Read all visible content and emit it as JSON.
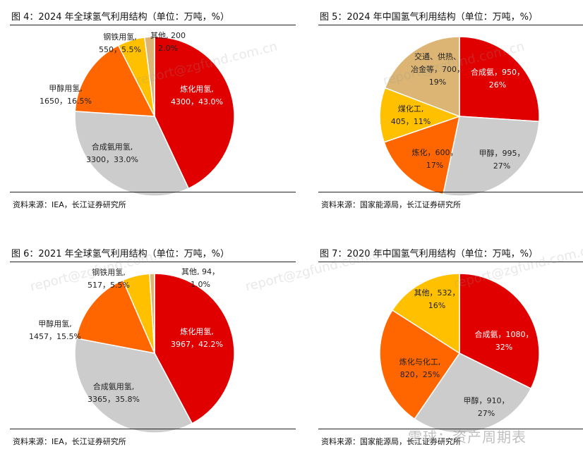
{
  "panels": [
    {
      "title": "图 4：2024 年全球氢气利用结构（单位：万吨，%）",
      "source": "资料来源：IEA，长江证券研究所"
    },
    {
      "title": "图 5：2024 年中国氢气利用结构（单位：万吨，%）",
      "source": "资料来源：国家能源局，长江证券研究所"
    },
    {
      "title": "图 6：2021 年全球氢气利用结构（单位：万吨，%）",
      "source": "资料来源：IEA，长江证券研究所"
    },
    {
      "title": "图 7：2020 年中国氢气利用结构（单位：万吨，%）",
      "source": "资料来源：国家能源局，长江证券研究所"
    }
  ],
  "watermark_text": "report@zgfund.com.cn",
  "footer_brand": "雪球：资产周期表",
  "chart_data": [
    {
      "type": "pie",
      "title": "图 4：2024 年全球氢气利用结构（单位：万吨，%）",
      "slices": [
        {
          "label_lines": [
            "炼化用氢,",
            "4300，43.0%"
          ],
          "value": 4300,
          "percent": 43.0,
          "color": "#e00000"
        },
        {
          "label_lines": [
            "合成氨用氢,",
            "3300，33.0%"
          ],
          "value": 3300,
          "percent": 33.0,
          "color": "#cccccc"
        },
        {
          "label_lines": [
            "甲醇用氢,",
            "1650，16.5%"
          ],
          "value": 1650,
          "percent": 16.5,
          "color": "#ff6600"
        },
        {
          "label_lines": [
            "钢铁用氢,",
            "550，5.5%"
          ],
          "value": 550,
          "percent": 5.5,
          "color": "#ffc000"
        },
        {
          "label_lines": [
            "其他, 200",
            "2.0%"
          ],
          "value": 200,
          "percent": 2.0,
          "color": "#dcb574"
        }
      ]
    },
    {
      "type": "pie",
      "title": "图 5：2024 年中国氢气利用结构（单位：万吨，%）",
      "slices": [
        {
          "label_lines": [
            "合成氨，950，",
            "26%"
          ],
          "value": 950,
          "percent": 26,
          "color": "#e00000"
        },
        {
          "label_lines": [
            "甲醇，995，",
            "27%"
          ],
          "value": 995,
          "percent": 27,
          "color": "#cccccc"
        },
        {
          "label_lines": [
            "炼化，600，",
            "17%"
          ],
          "value": 600,
          "percent": 17,
          "color": "#ff6600"
        },
        {
          "label_lines": [
            "煤化工,",
            "405，11%"
          ],
          "value": 405,
          "percent": 11,
          "color": "#ffc000"
        },
        {
          "label_lines": [
            "交通、供热、",
            "冶金等，700，",
            "19%"
          ],
          "value": 700,
          "percent": 19,
          "color": "#dcb574"
        }
      ]
    },
    {
      "type": "pie",
      "title": "图 6：2021 年全球氢气利用结构（单位：万吨，%）",
      "slices": [
        {
          "label_lines": [
            "炼化用氢,",
            "3967，42.2%"
          ],
          "value": 3967,
          "percent": 42.2,
          "color": "#e00000"
        },
        {
          "label_lines": [
            "合成氨用氢,",
            "3365，35.8%"
          ],
          "value": 3365,
          "percent": 35.8,
          "color": "#cccccc"
        },
        {
          "label_lines": [
            "甲醇用氢,",
            "1457，15.5%"
          ],
          "value": 1457,
          "percent": 15.5,
          "color": "#ff6600"
        },
        {
          "label_lines": [
            "钢铁用氢,",
            "517，5.5%"
          ],
          "value": 517,
          "percent": 5.5,
          "color": "#ffc000"
        },
        {
          "label_lines": [
            "其他, 94，",
            "1.0%"
          ],
          "value": 94,
          "percent": 1.0,
          "color": "#dcb574"
        }
      ]
    },
    {
      "type": "pie",
      "title": "图 7：2020 年中国氢气利用结构（单位：万吨，%）",
      "slices": [
        {
          "label_lines": [
            "合成氨，1080，",
            "32%"
          ],
          "value": 1080,
          "percent": 32,
          "color": "#e00000"
        },
        {
          "label_lines": [
            "甲醇，910，",
            "27%"
          ],
          "value": 910,
          "percent": 27,
          "color": "#cccccc"
        },
        {
          "label_lines": [
            "炼化与化工,",
            "820，25%"
          ],
          "value": 820,
          "percent": 25,
          "color": "#ff6600"
        },
        {
          "label_lines": [
            "其他，532，",
            "16%"
          ],
          "value": 532,
          "percent": 16,
          "color": "#ffc000"
        }
      ]
    }
  ]
}
